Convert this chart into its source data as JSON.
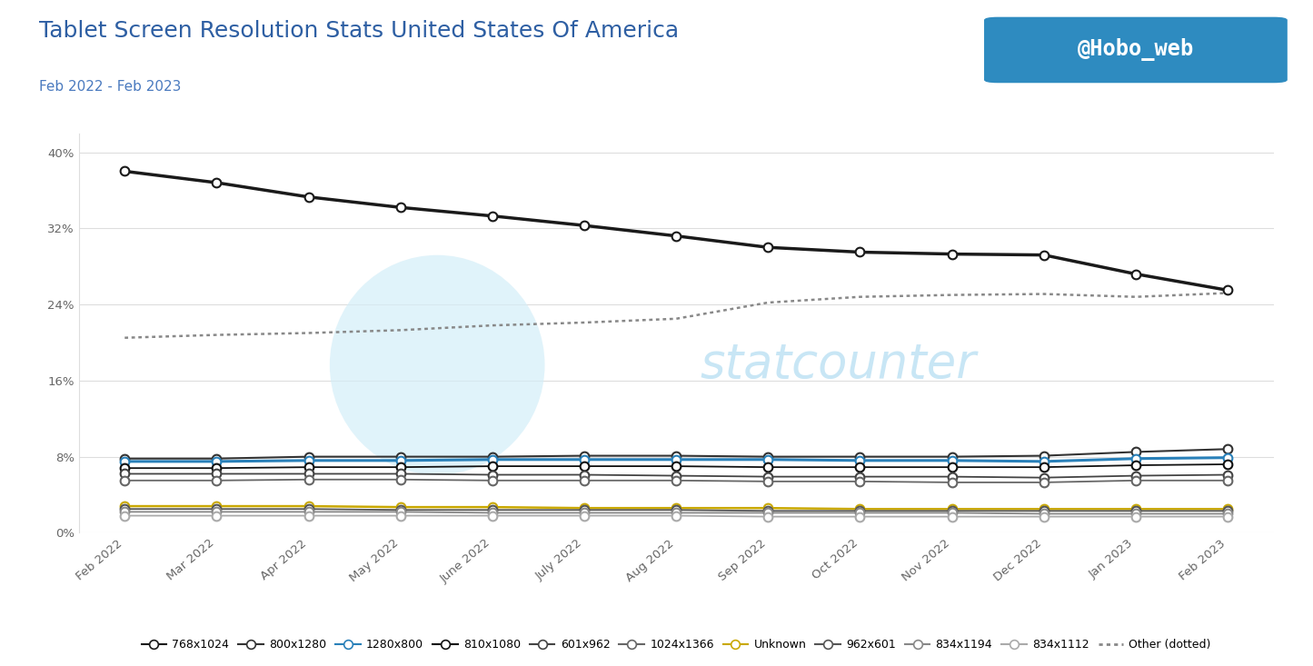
{
  "title": "Tablet Screen Resolution Stats United States Of America",
  "subtitle": "Feb 2022 - Feb 2023",
  "watermark": "@Hobo_web",
  "x_labels": [
    "Feb 2022",
    "Mar 2022",
    "Apr 2022",
    "May 2022",
    "June 2022",
    "July 2022",
    "Aug 2022",
    "Sep 2022",
    "Oct 2022",
    "Nov 2022",
    "Dec 2022",
    "Jan 2023",
    "Feb 2023"
  ],
  "series": {
    "768x1024": {
      "color": "#1a1a1a",
      "style": "solid",
      "marker": "o",
      "marker_face": "white",
      "linewidth": 2.5,
      "values": [
        38.0,
        36.8,
        35.3,
        34.2,
        33.3,
        32.3,
        31.2,
        30.0,
        29.5,
        29.3,
        29.2,
        27.2,
        25.5
      ]
    },
    "800x1280": {
      "color": "#333333",
      "style": "solid",
      "marker": "o",
      "marker_face": "white",
      "linewidth": 1.5,
      "values": [
        7.8,
        7.8,
        8.0,
        8.0,
        8.0,
        8.1,
        8.1,
        8.0,
        8.0,
        8.0,
        8.1,
        8.5,
        8.8
      ]
    },
    "1280x800": {
      "color": "#2980b9",
      "style": "solid",
      "marker": "o",
      "marker_face": "white",
      "linewidth": 2.2,
      "values": [
        7.5,
        7.5,
        7.6,
        7.6,
        7.7,
        7.7,
        7.7,
        7.7,
        7.6,
        7.6,
        7.5,
        7.8,
        7.9
      ]
    },
    "810x1080": {
      "color": "#111111",
      "style": "solid",
      "marker": "o",
      "marker_face": "white",
      "linewidth": 1.3,
      "values": [
        6.8,
        6.8,
        6.9,
        6.9,
        7.0,
        7.0,
        7.0,
        6.9,
        6.9,
        6.9,
        6.9,
        7.1,
        7.2
      ]
    },
    "601x962": {
      "color": "#444444",
      "style": "solid",
      "marker": "o",
      "marker_face": "white",
      "linewidth": 1.3,
      "values": [
        6.2,
        6.2,
        6.2,
        6.2,
        6.1,
        6.1,
        6.0,
        5.9,
        5.9,
        5.9,
        5.8,
        6.0,
        6.1
      ]
    },
    "1024x1366": {
      "color": "#666666",
      "style": "solid",
      "marker": "o",
      "marker_face": "white",
      "linewidth": 1.3,
      "values": [
        5.5,
        5.5,
        5.6,
        5.6,
        5.5,
        5.5,
        5.5,
        5.4,
        5.4,
        5.3,
        5.3,
        5.5,
        5.5
      ]
    },
    "Unknown": {
      "color": "#c9a800",
      "style": "solid",
      "marker": "o",
      "marker_face": "white",
      "linewidth": 1.8,
      "values": [
        2.8,
        2.8,
        2.8,
        2.7,
        2.7,
        2.6,
        2.6,
        2.6,
        2.5,
        2.5,
        2.5,
        2.5,
        2.5
      ]
    },
    "962x601": {
      "color": "#555555",
      "style": "solid",
      "marker": "o",
      "marker_face": "white",
      "linewidth": 1.3,
      "values": [
        2.5,
        2.5,
        2.5,
        2.4,
        2.4,
        2.4,
        2.4,
        2.3,
        2.3,
        2.3,
        2.3,
        2.3,
        2.3
      ]
    },
    "834x1194": {
      "color": "#888888",
      "style": "solid",
      "marker": "o",
      "marker_face": "white",
      "linewidth": 1.3,
      "values": [
        2.2,
        2.2,
        2.2,
        2.2,
        2.1,
        2.1,
        2.1,
        2.1,
        2.1,
        2.1,
        2.0,
        2.0,
        2.0
      ]
    },
    "834x1112": {
      "color": "#aaaaaa",
      "style": "solid",
      "marker": "o",
      "marker_face": "white",
      "linewidth": 1.3,
      "values": [
        1.8,
        1.8,
        1.8,
        1.8,
        1.8,
        1.8,
        1.8,
        1.7,
        1.7,
        1.7,
        1.7,
        1.7,
        1.7
      ]
    },
    "Other": {
      "color": "#888888",
      "style": "dotted",
      "marker": "none",
      "linewidth": 1.8,
      "values": [
        20.5,
        20.8,
        21.0,
        21.3,
        21.8,
        22.1,
        22.5,
        24.2,
        24.8,
        25.0,
        25.1,
        24.8,
        25.2
      ]
    }
  },
  "ylim": [
    0,
    42
  ],
  "yticks": [
    0,
    8,
    16,
    24,
    32,
    40
  ],
  "ytick_labels": [
    "0%",
    "8%",
    "16%",
    "24%",
    "32%",
    "40%"
  ],
  "bg_color": "#ffffff",
  "grid_color": "#dddddd",
  "title_color": "#2e5fa3",
  "subtitle_color": "#4a7abf",
  "watermark_bg": "#2e8bc0",
  "statcounter_color": "#c8e6f5"
}
